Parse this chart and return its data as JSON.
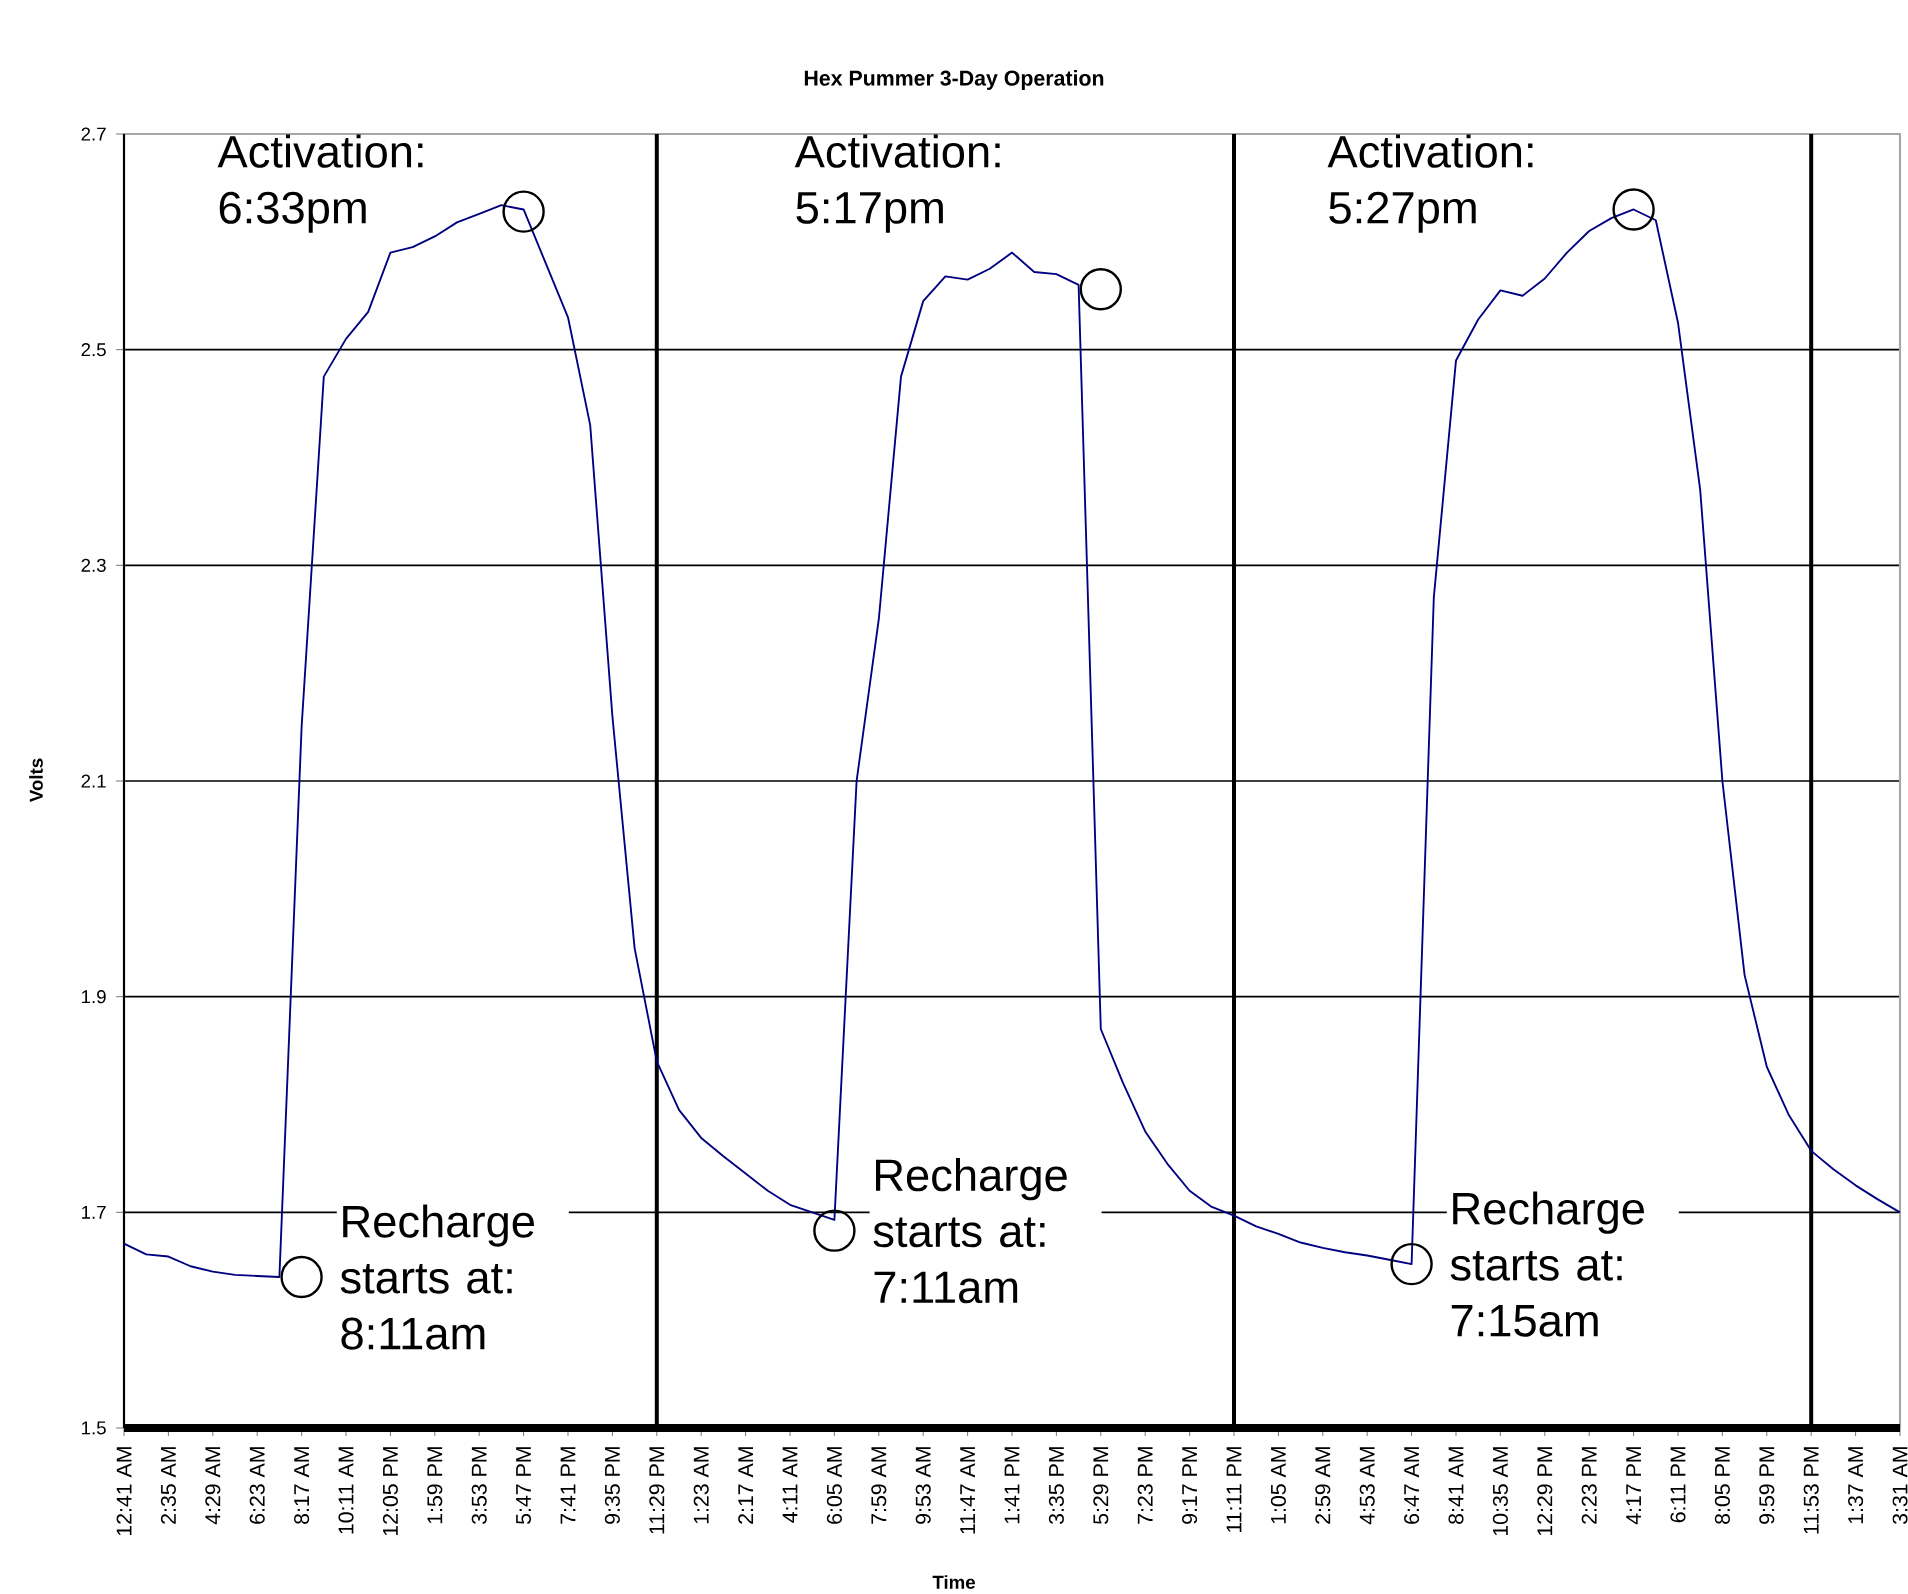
{
  "chart_data": {
    "type": "line",
    "title": "Hex Pummer 3-Day Operation",
    "xlabel": "Time",
    "ylabel": "Volts",
    "ylim": [
      1.5,
      2.7
    ],
    "yticks": [
      1.5,
      1.7,
      1.9,
      2.1,
      2.3,
      2.5,
      2.7
    ],
    "grid": "y",
    "categories": [
      "12:41 AM",
      null,
      "2:35 AM",
      null,
      "4:29 AM",
      null,
      "6:23 AM",
      null,
      "8:17 AM",
      null,
      "10:11 AM",
      null,
      "12:05 PM",
      null,
      "1:59 PM",
      null,
      "3:53 PM",
      null,
      "5:47 PM",
      null,
      "7:41 PM",
      null,
      "9:35 PM",
      null,
      "11:29 PM",
      null,
      "1:23 AM",
      null,
      "2:17 AM",
      null,
      "4:11 AM",
      null,
      "6:05 AM",
      null,
      "7:59 AM",
      null,
      "9:53 AM",
      null,
      "11:47 AM",
      null,
      "1:41 PM",
      null,
      "3:35 PM",
      null,
      "5:29 PM",
      null,
      "7:23 PM",
      null,
      "9:17 PM",
      null,
      "11:11 PM",
      null,
      "1:05 AM",
      null,
      "2:59 AM",
      null,
      "4:53 AM",
      null,
      "6:47 AM",
      null,
      "8:41 AM",
      null,
      "10:35 AM",
      null,
      "12:29 PM",
      null,
      "2:23 PM",
      null,
      "4:17 PM",
      null,
      "6:11 PM",
      null,
      "8:05 PM",
      null,
      "9:59 PM",
      null,
      "11:53 PM",
      null,
      "1:37 AM",
      null,
      "3:31 AM"
    ],
    "ref_lines": [
      {
        "axis": "x",
        "value": "11:29 PM",
        "color": "#000000"
      },
      {
        "axis": "x",
        "value": "11:11 PM",
        "color": "#000000"
      },
      {
        "axis": "x",
        "value": "11:53 PM",
        "color": "#000000"
      }
    ],
    "series": [
      {
        "color": "#000080",
        "values": [
          1.671,
          1.661,
          1.659,
          1.65,
          1.645,
          1.642,
          1.641,
          1.64,
          2.15,
          2.475,
          2.51,
          2.535,
          2.59,
          2.595,
          2.605,
          2.618,
          2.626,
          2.634,
          2.63,
          2.58,
          2.53,
          2.43,
          2.16,
          1.945,
          1.84,
          1.795,
          1.769,
          1.752,
          1.736,
          1.72,
          1.707,
          1.7,
          1.693,
          2.1,
          2.25,
          2.475,
          2.545,
          2.568,
          2.565,
          2.575,
          2.59,
          2.572,
          2.57,
          2.56,
          1.87,
          1.82,
          1.775,
          1.745,
          1.72,
          1.705,
          1.697,
          1.687,
          1.68,
          1.672,
          1.667,
          1.663,
          1.66,
          1.656,
          1.652,
          2.27,
          2.49,
          2.528,
          2.555,
          2.55,
          2.566,
          2.59,
          2.61,
          2.622,
          2.63,
          2.62,
          2.525,
          2.37,
          2.1,
          1.92,
          1.835,
          1.79,
          1.757,
          1.74,
          1.725,
          1.712,
          1.7
        ]
      }
    ],
    "annotations": [
      {
        "text": "Activation: 6:33pm",
        "x": "5:47 PM",
        "y": 2.628
      },
      {
        "text": "Recharge starts at: 8:11am",
        "x": "8:17 AM",
        "y": 1.64
      },
      {
        "text": "Activation: 5:17pm",
        "x": "5:29 PM",
        "y": 2.556
      },
      {
        "text": "Recharge starts at: 7:11am",
        "x": "6:05 AM",
        "y": 1.683
      },
      {
        "text": "Activation: 5:27pm",
        "x": "4:17 PM",
        "y": 2.63
      },
      {
        "text": "Recharge starts at: 7:15am",
        "x": "6:47 AM",
        "y": 1.652
      }
    ]
  }
}
